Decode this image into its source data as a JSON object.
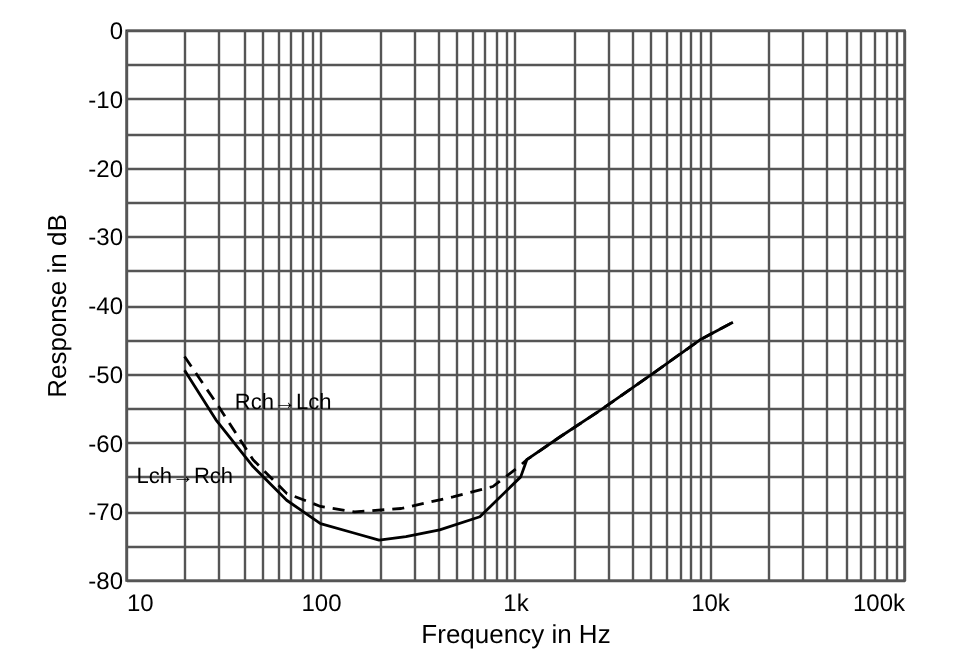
{
  "chart_data": {
    "type": "line",
    "xlabel": "Frequency in Hz",
    "ylabel": "Response in dB",
    "log": "x",
    "grid": true,
    "marker": "none",
    "xlim": [
      10,
      100000
    ],
    "ylim": [
      -80,
      0
    ],
    "xticks": [
      10,
      {
        "value": 20,
        "label": null
      },
      {
        "value": 30,
        "label": null
      },
      {
        "value": 40,
        "label": null
      },
      {
        "value": 50,
        "label": null
      },
      {
        "value": 60,
        "label": null
      },
      {
        "value": 70,
        "label": null
      },
      {
        "value": 80,
        "label": null
      },
      {
        "value": 90,
        "label": null
      },
      100,
      {
        "value": 200,
        "label": null
      },
      {
        "value": 300,
        "label": null
      },
      {
        "value": 400,
        "label": null
      },
      {
        "value": 500,
        "label": null
      },
      {
        "value": 600,
        "label": null
      },
      {
        "value": 700,
        "label": null
      },
      {
        "value": 800,
        "label": null
      },
      {
        "value": 900,
        "label": null
      },
      {
        "value": 1000,
        "label": "1k"
      },
      {
        "value": 2000,
        "label": null
      },
      {
        "value": 3000,
        "label": null
      },
      {
        "value": 4000,
        "label": null
      },
      {
        "value": 5000,
        "label": null
      },
      {
        "value": 6000,
        "label": null
      },
      {
        "value": 7000,
        "label": null
      },
      {
        "value": 8000,
        "label": null
      },
      {
        "value": 9000,
        "label": null
      },
      {
        "value": 10000,
        "label": "10k"
      },
      {
        "value": 20000,
        "label": null
      },
      {
        "value": 30000,
        "label": null
      },
      {
        "value": 40000,
        "label": null
      },
      {
        "value": 50000,
        "label": null
      },
      {
        "value": 60000,
        "label": null
      },
      {
        "value": 70000,
        "label": null
      },
      {
        "value": 80000,
        "label": null
      },
      {
        "value": 90000,
        "label": null
      },
      {
        "value": 100000,
        "label": "100k"
      }
    ],
    "yticks": [
      0,
      {
        "value": -5,
        "label": null
      },
      -10,
      {
        "value": -15,
        "label": null
      },
      -20,
      {
        "value": -25,
        "label": null
      },
      -30,
      {
        "value": -35,
        "label": null
      },
      -40,
      {
        "value": -45,
        "label": null
      },
      -50,
      {
        "value": -55,
        "label": null
      },
      -60,
      {
        "value": -65,
        "label": null
      },
      -70,
      {
        "value": -75,
        "label": null
      },
      -80
    ],
    "series": [
      {
        "name": "Rch→Lch",
        "color": "#000000",
        "line_style": "dashed",
        "x": [
          20,
          30,
          45,
          67,
          100,
          150,
          260,
          480,
          770,
          1070,
          1150,
          1700,
          2750,
          5150,
          8900,
          13200
        ],
        "values": [
          -47.5,
          -54.8,
          -62.5,
          -67.4,
          -69.3,
          -70.1,
          -69.6,
          -67.9,
          -66.4,
          -63.3,
          -62.5,
          -59.2,
          -55.3,
          -49.9,
          -45.1,
          -42.5
        ]
      },
      {
        "name": "Lch→Rch",
        "color": "#000000",
        "line_style": "solid",
        "x": [
          20,
          29,
          45,
          67,
          100,
          150,
          200,
          275,
          410,
          660,
          1070,
          1150,
          1700,
          2750,
          5150,
          8900,
          13200
        ],
        "values": [
          -49.5,
          -56.7,
          -63.5,
          -68.4,
          -71.8,
          -73.2,
          -74.2,
          -73.7,
          -72.7,
          -70.8,
          -65,
          -62.5,
          -59.2,
          -55.3,
          -49.9,
          -45.1,
          -42.5
        ]
      }
    ]
  }
}
